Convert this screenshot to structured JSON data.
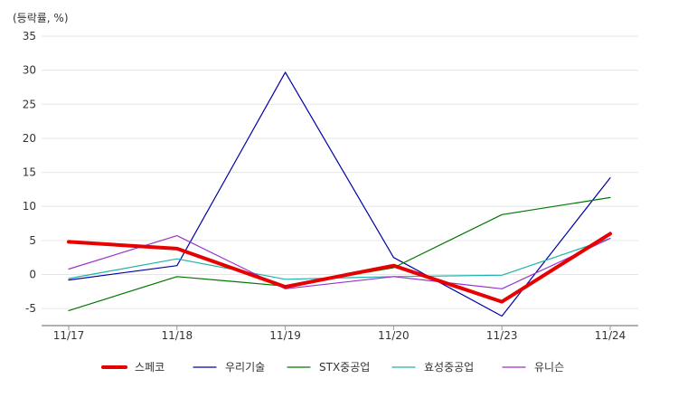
{
  "chart_data": {
    "type": "line",
    "unit_label": "(등락률, %)",
    "categories": [
      "11/17",
      "11/18",
      "11/19",
      "11/20",
      "11/23",
      "11/24"
    ],
    "y_ticks": [
      35,
      30,
      25,
      20,
      15,
      10,
      5,
      0,
      -5
    ],
    "ylim": [
      -7.5,
      35
    ],
    "grid": true,
    "legend_position": "bottom",
    "series": [
      {
        "name": "스페코",
        "color": "#e60000",
        "width": 4,
        "values": [
          4.8,
          3.8,
          -1.8,
          1.3,
          -4.0,
          6.0
        ]
      },
      {
        "name": "우리기술",
        "color": "#0000aa",
        "width": 1.2,
        "values": [
          -0.8,
          1.3,
          29.7,
          2.5,
          -6.1,
          14.2
        ]
      },
      {
        "name": "STX중공업",
        "color": "#007700",
        "width": 1.2,
        "values": [
          -5.3,
          -0.3,
          -1.7,
          1.0,
          8.8,
          11.3
        ]
      },
      {
        "name": "효성중공업",
        "color": "#20b2aa",
        "width": 1.2,
        "values": [
          -0.6,
          2.3,
          -0.7,
          -0.3,
          -0.1,
          5.3
        ]
      },
      {
        "name": "유니슨",
        "color": "#9932cc",
        "width": 1.2,
        "values": [
          0.8,
          5.7,
          -2.1,
          -0.3,
          -2.1,
          5.3
        ]
      }
    ]
  }
}
